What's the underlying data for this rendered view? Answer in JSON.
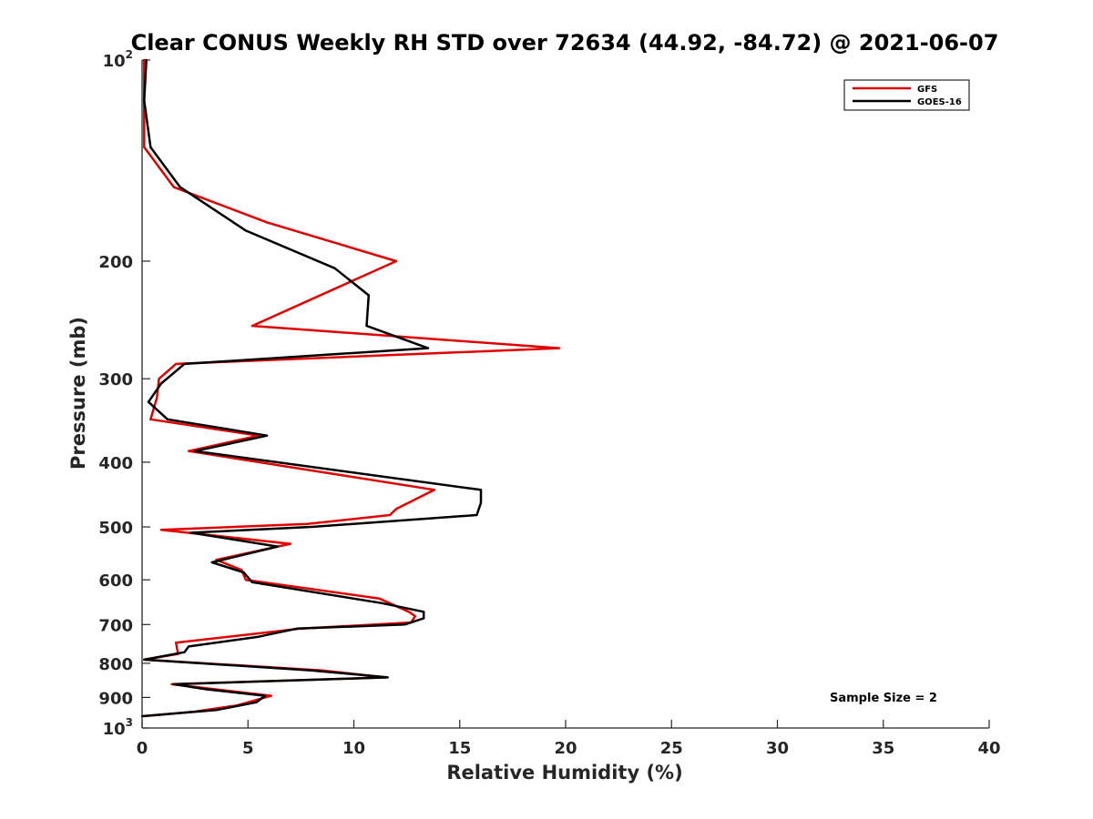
{
  "chart_data": {
    "type": "line",
    "title": "Clear CONUS Weekly RH STD over 72634 (44.92, -84.72) @ 2021-06-07",
    "xlabel": "Relative Humidity (%)",
    "ylabel": "Pressure (mb)",
    "xlim": [
      0,
      40
    ],
    "ylim": [
      100,
      1000
    ],
    "yscale": "log",
    "y_reversed": true,
    "x_ticks": [
      "0",
      "5",
      "10",
      "15",
      "20",
      "25",
      "30",
      "35",
      "40"
    ],
    "y_ticks": [
      {
        "value": 100,
        "label": "10",
        "sup": "2"
      },
      {
        "value": 200,
        "label": "200",
        "sup": ""
      },
      {
        "value": 300,
        "label": "300",
        "sup": ""
      },
      {
        "value": 400,
        "label": "400",
        "sup": ""
      },
      {
        "value": 500,
        "label": "500",
        "sup": ""
      },
      {
        "value": 600,
        "label": "600",
        "sup": ""
      },
      {
        "value": 700,
        "label": "700",
        "sup": ""
      },
      {
        "value": 800,
        "label": "800",
        "sup": ""
      },
      {
        "value": 900,
        "label": "900",
        "sup": ""
      },
      {
        "value": 1000,
        "label": "10",
        "sup": "3"
      }
    ],
    "legend_position": "top-right",
    "annotation": "Sample Size = 2",
    "series": [
      {
        "name": "GFS",
        "color": "#e00000",
        "x": [
          0.1,
          0.1,
          0.1,
          1.5,
          5.9,
          12.0,
          9.1,
          5.2,
          19.7,
          1.6,
          0.8,
          0.7,
          0.4,
          5.5,
          2.2,
          13.8,
          12.0,
          11.7,
          7.8,
          0.9,
          7.0,
          3.5,
          4.7,
          4.9,
          11.2,
          12.6,
          12.9,
          12.7,
          7.5,
          1.6,
          1.7,
          0.1,
          8.5,
          11.5,
          1.4,
          6.1,
          4.5,
          2.5,
          0.1
        ],
        "y": [
          100,
          115,
          135,
          155,
          175,
          200,
          220,
          250,
          270,
          285,
          300,
          320,
          345,
          365,
          385,
          440,
          470,
          480,
          495,
          505,
          530,
          560,
          580,
          600,
          640,
          670,
          680,
          695,
          710,
          745,
          775,
          790,
          820,
          840,
          860,
          895,
          925,
          945,
          960
        ]
      },
      {
        "name": "GOES-16",
        "color": "#000000",
        "x": [
          0.2,
          0.1,
          0.4,
          1.8,
          4.9,
          9.1,
          10.7,
          10.6,
          13.5,
          2.0,
          0.9,
          0.3,
          1.2,
          5.9,
          2.5,
          16.0,
          16.0,
          15.8,
          8.0,
          2.3,
          6.4,
          3.3,
          4.8,
          5.2,
          11.3,
          13.3,
          13.3,
          12.4,
          7.3,
          5.5,
          2.2,
          2.0,
          0.1,
          8.0,
          11.6,
          1.5,
          3.0,
          5.8,
          5.4,
          3.5,
          0.0
        ],
        "y": [
          100,
          115,
          135,
          155,
          180,
          205,
          225,
          250,
          270,
          285,
          305,
          325,
          345,
          365,
          385,
          440,
          460,
          480,
          500,
          510,
          535,
          565,
          585,
          605,
          650,
          670,
          685,
          700,
          710,
          730,
          755,
          770,
          790,
          820,
          840,
          860,
          875,
          895,
          915,
          940,
          960
        ]
      }
    ]
  }
}
